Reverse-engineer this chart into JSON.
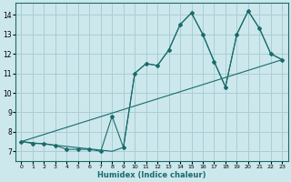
{
  "xlabel": "Humidex (Indice chaleur)",
  "bg_color": "#cce8ed",
  "grid_color": "#aacdd4",
  "line_color": "#1a6b6b",
  "xlim": [
    -0.5,
    23.5
  ],
  "ylim": [
    6.5,
    14.6
  ],
  "xticks": [
    0,
    1,
    2,
    3,
    4,
    5,
    6,
    7,
    8,
    9,
    10,
    11,
    12,
    13,
    14,
    15,
    16,
    17,
    18,
    19,
    20,
    21,
    22,
    23
  ],
  "yticks": [
    7,
    8,
    9,
    10,
    11,
    12,
    13,
    14
  ],
  "line1_x": [
    0,
    1,
    2,
    3,
    4,
    5,
    6,
    7,
    8,
    9,
    10,
    11,
    12,
    13,
    14,
    15,
    16,
    17,
    18,
    19,
    20,
    21,
    22,
    23
  ],
  "line1_y": [
    7.5,
    7.4,
    7.4,
    7.3,
    7.1,
    7.1,
    7.1,
    7.0,
    8.8,
    7.2,
    11.0,
    11.5,
    11.4,
    12.2,
    13.5,
    14.1,
    13.0,
    11.6,
    10.3,
    13.0,
    14.2,
    13.3,
    12.0,
    11.7
  ],
  "line2_x": [
    0,
    23
  ],
  "line2_y": [
    7.5,
    11.7
  ],
  "line3_x": [
    0,
    8,
    9,
    10,
    11,
    12,
    13,
    14,
    15,
    16,
    17,
    18,
    19,
    20,
    21,
    22,
    23
  ],
  "line3_y": [
    7.5,
    7.0,
    7.2,
    11.0,
    11.5,
    11.4,
    12.2,
    13.5,
    14.1,
    13.0,
    11.6,
    10.3,
    13.0,
    14.2,
    13.3,
    12.0,
    11.7
  ]
}
